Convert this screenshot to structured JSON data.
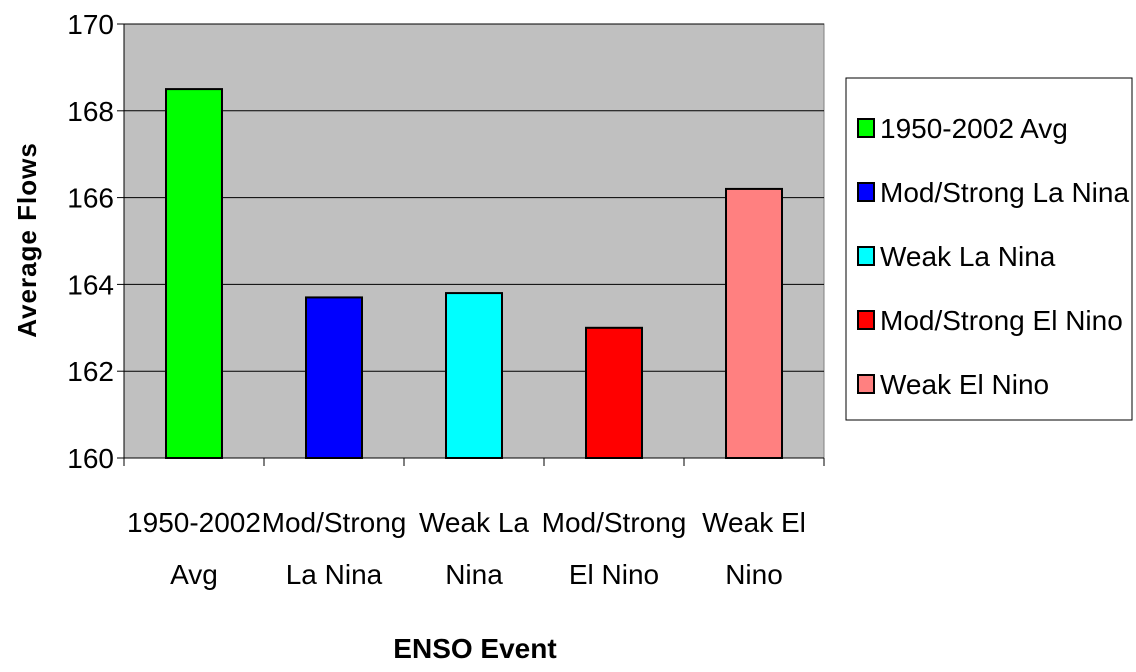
{
  "chart_data": {
    "type": "bar",
    "xlabel": "ENSO Event",
    "ylabel": "Average Flows",
    "ylim": [
      160,
      170
    ],
    "yticks": [
      160,
      162,
      164,
      166,
      168,
      170
    ],
    "grid": true,
    "legend_position": "right",
    "categories": [
      [
        "1950-2002",
        "Avg"
      ],
      [
        "Mod/Strong",
        "La Nina"
      ],
      [
        "Weak La",
        "Nina"
      ],
      [
        "Mod/Strong",
        "El Nino"
      ],
      [
        "Weak El",
        "Nino"
      ]
    ],
    "series": [
      {
        "name": "1950-2002 Avg",
        "value": 168.5,
        "color": "#00ff00"
      },
      {
        "name": "Mod/Strong La Nina",
        "value": 163.7,
        "color": "#0000ff"
      },
      {
        "name": "Weak La Nina",
        "value": 163.8,
        "color": "#00ffff"
      },
      {
        "name": "Mod/Strong El Nino",
        "value": 163.0,
        "color": "#ff0000"
      },
      {
        "name": "Weak El Nino",
        "value": 166.2,
        "color": "#ff8080"
      }
    ],
    "plot_background": "#c0c0c0"
  }
}
